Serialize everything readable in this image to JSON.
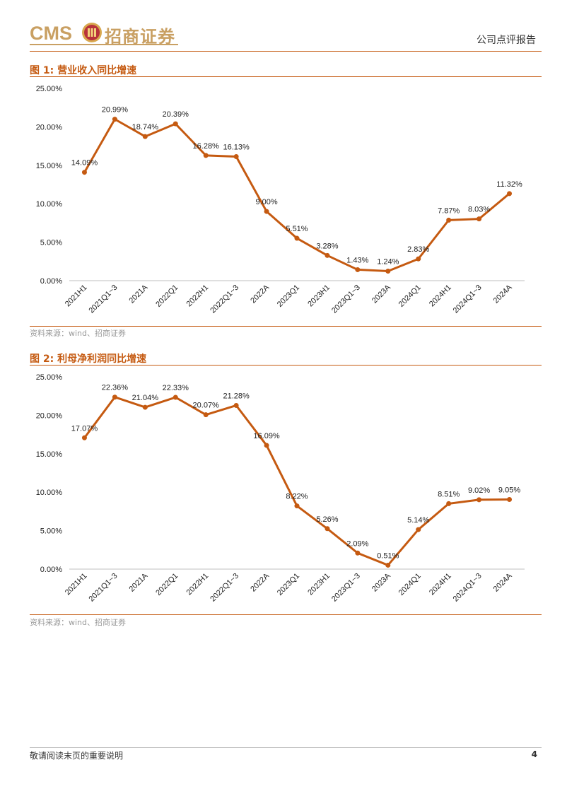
{
  "header": {
    "logo_text": "CMS",
    "logo_cn": "招商证券",
    "report_type": "公司点评报告"
  },
  "figures": [
    {
      "title": "图 1: 营业收入同比增速",
      "source": "资料来源：wind、招商证券"
    },
    {
      "title": "图 2: 利母净利润同比增速",
      "source": "资料来源：wind、招商证券"
    }
  ],
  "chart_data": [
    {
      "type": "line",
      "categories": [
        "2021H1",
        "2021Q1~3",
        "2021A",
        "2022Q1",
        "2022H1",
        "2022Q1~3",
        "2022A",
        "2023Q1",
        "2023H1",
        "2023Q1~3",
        "2023A",
        "2024Q1",
        "2024H1",
        "2024Q1~3",
        "2024A"
      ],
      "values": [
        14.09,
        20.99,
        18.74,
        20.39,
        16.28,
        16.13,
        9.0,
        5.51,
        3.28,
        1.43,
        1.24,
        2.83,
        7.87,
        8.03,
        11.32
      ],
      "labels": [
        "14.09%",
        "20.99%",
        "18.74%",
        "20.39%",
        "16.28%",
        "16.13%",
        "9.00%",
        "5.51%",
        "3.28%",
        "1.43%",
        "1.24%",
        "2.83%",
        "7.87%",
        "8.03%",
        "11.32%"
      ],
      "yticks": [
        "0.00%",
        "5.00%",
        "10.00%",
        "15.00%",
        "20.00%",
        "25.00%"
      ],
      "ylim": [
        0,
        25
      ],
      "color": "#c55a11",
      "grid": false
    },
    {
      "type": "line",
      "categories": [
        "2021H1",
        "2021Q1~3",
        "2021A",
        "2022Q1",
        "2022H1",
        "2022Q1~3",
        "2022A",
        "2023Q1",
        "2023H1",
        "2023Q1~3",
        "2023A",
        "2024Q1",
        "2024H1",
        "2024Q1~3",
        "2024A"
      ],
      "values": [
        17.07,
        22.36,
        21.04,
        22.33,
        20.07,
        21.28,
        16.09,
        8.22,
        5.26,
        2.09,
        0.51,
        5.14,
        8.51,
        9.02,
        9.05
      ],
      "labels": [
        "17.07%",
        "22.36%",
        "21.04%",
        "22.33%",
        "20.07%",
        "21.28%",
        "16.09%",
        "8.22%",
        "5.26%",
        "2.09%",
        "0.51%",
        "5.14%",
        "8.51%",
        "9.02%",
        "9.05%"
      ],
      "yticks": [
        "0.00%",
        "5.00%",
        "10.00%",
        "15.00%",
        "20.00%",
        "25.00%"
      ],
      "ylim": [
        0,
        25
      ],
      "color": "#c55a11",
      "grid": false
    }
  ],
  "footer": {
    "note": "敬请阅读末页的重要说明",
    "page": "4"
  }
}
